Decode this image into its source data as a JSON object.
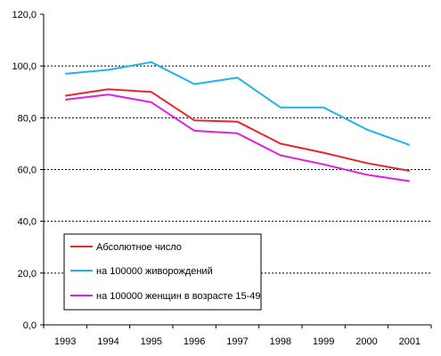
{
  "chart_data": {
    "type": "line",
    "categories": [
      "1993",
      "1994",
      "1995",
      "1996",
      "1997",
      "1998",
      "1999",
      "2000",
      "2001"
    ],
    "series": [
      {
        "name": "Абсолютное число",
        "color": "#e8262b",
        "values": [
          88.5,
          91.0,
          90.0,
          79.0,
          78.5,
          70.0,
          66.5,
          62.5,
          59.5
        ]
      },
      {
        "name": "на 100000 живорождений",
        "color": "#1fb2ea",
        "values": [
          97.0,
          98.5,
          101.5,
          93.0,
          95.5,
          84.0,
          84.0,
          75.5,
          69.5
        ]
      },
      {
        "name": "на 100000 женщин в возрасте 15-49",
        "color": "#e020e0",
        "values": [
          87.0,
          89.0,
          86.0,
          75.0,
          74.0,
          65.5,
          62.0,
          58.0,
          55.5
        ]
      }
    ],
    "yticks": [
      "0,0",
      "20,0",
      "40,0",
      "60,0",
      "80,0",
      "100,0",
      "120,0"
    ],
    "ylim": [
      0,
      120
    ],
    "grid": true,
    "legend_position": "bottom-left"
  }
}
